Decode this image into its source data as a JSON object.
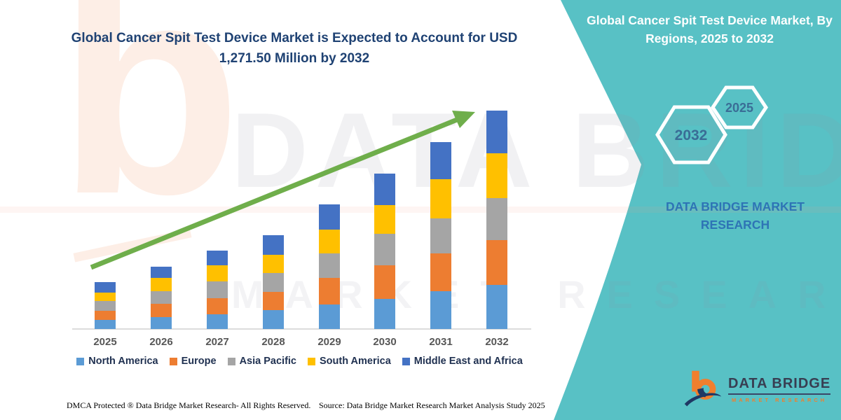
{
  "right_panel": {
    "title": "Global Cancer Spit Test Device Market, By Regions, 2025 to 2032",
    "hexagons": [
      {
        "label": "2032"
      },
      {
        "label": "2025"
      }
    ],
    "brand_text": "DATA BRIDGE MARKET RESEARCH",
    "background_color": "#58C1C5",
    "hexagon_border_color": "#ffffff",
    "hexagon_label_color": "#3A6D96"
  },
  "chart_data": {
    "type": "bar",
    "stacked": true,
    "title": "Global Cancer Spit Test Device Market is Expected to Account for USD 1,271.50 Million by 2032",
    "unit": "USD Million",
    "categories": [
      "2025",
      "2026",
      "2027",
      "2028",
      "2029",
      "2030",
      "2031",
      "2032"
    ],
    "series": [
      {
        "name": "North America",
        "color": "#5B9BD5",
        "values": [
          53,
          69,
          86,
          110,
          143,
          175,
          220,
          257
        ]
      },
      {
        "name": "Europe",
        "color": "#ED7D31",
        "values": [
          53,
          77,
          94,
          106,
          155,
          196,
          220,
          261
        ]
      },
      {
        "name": "Asia Pacific",
        "color": "#A5A5A5",
        "values": [
          57,
          73,
          98,
          110,
          143,
          183,
          204,
          245
        ]
      },
      {
        "name": "South America",
        "color": "#FFC000",
        "values": [
          49,
          77,
          94,
          106,
          139,
          167,
          228,
          261
        ]
      },
      {
        "name": "Middle East and Africa",
        "color": "#4472C4",
        "values": [
          61,
          65,
          86,
          114,
          147,
          183,
          216,
          247.5
        ]
      }
    ],
    "totals": [
      273,
      361,
      458,
      546,
      727,
      904,
      1088,
      1271.5
    ],
    "ylim": [
      0,
      1350
    ],
    "y_axis": "hidden",
    "grid": false,
    "legend_position": "bottom",
    "trend_arrow_color": "#6FAE4B",
    "title_color": "#1F4273"
  },
  "footer": {
    "left": "DMCA Protected ® Data Bridge Market Research-  All Rights Reserved.",
    "source": "Source: Data Bridge Market Research  Market Analysis Study 2025"
  },
  "logo": {
    "name": "DATA BRIDGE",
    "subtitle": "MARKET RESEARCH"
  },
  "watermark": {
    "letter": "b",
    "line1": "DATA BRIDGE",
    "line2": "MARKET RESEARCH"
  }
}
